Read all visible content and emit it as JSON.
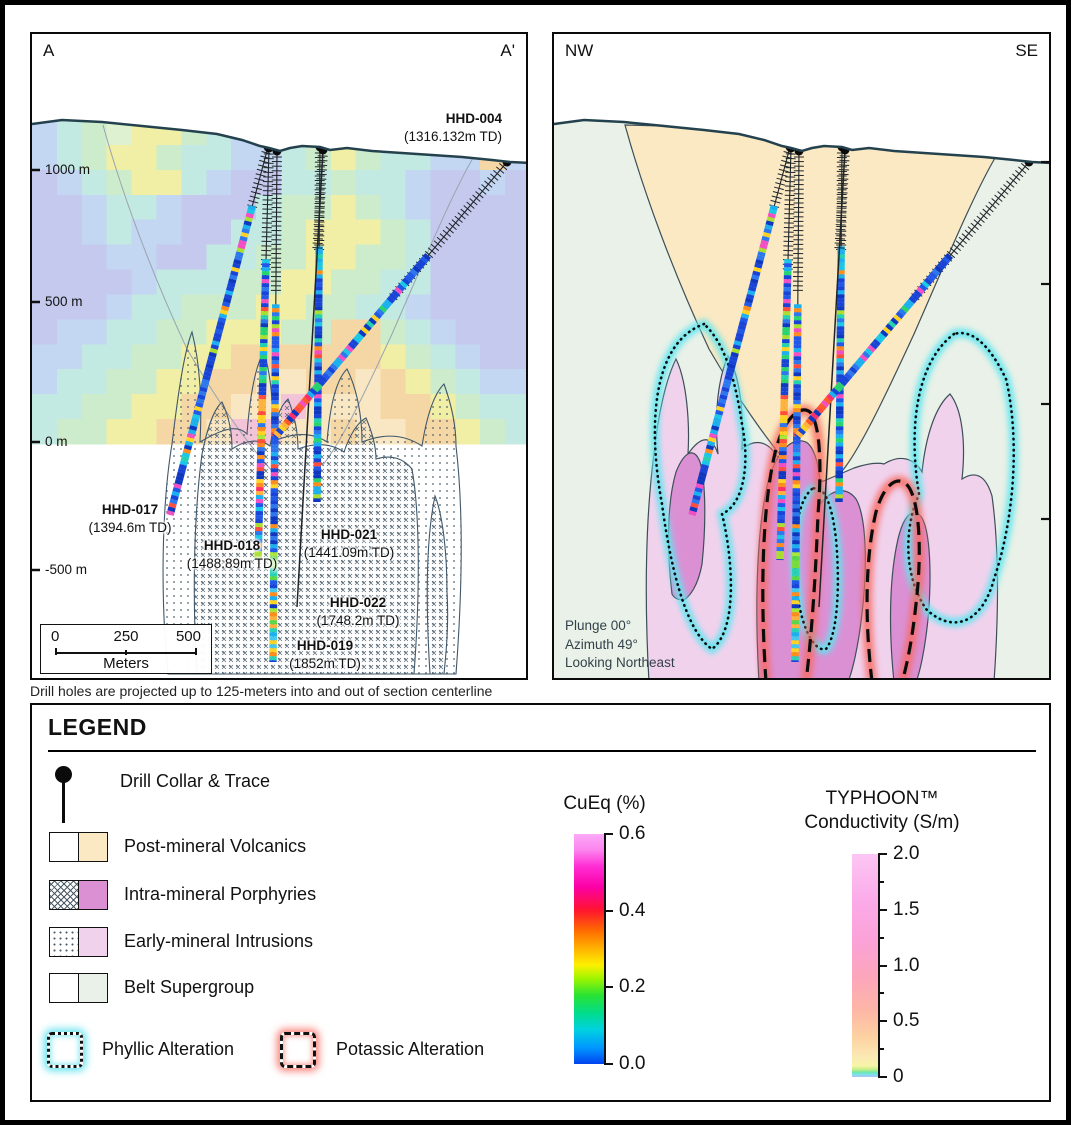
{
  "section_a": {
    "corner_left": "A",
    "corner_right": "A'",
    "depth_labels": [
      "1000 m",
      "500 m",
      "0 m",
      "-500 m"
    ],
    "holes": {
      "hhd004": {
        "name": "HHD-004",
        "td": "(1316.132m TD)"
      },
      "hhd017": {
        "name": "HHD-017",
        "td": "(1394.6m TD)"
      },
      "hhd018": {
        "name": "HHD-018",
        "td": "(1488.89m TD)"
      },
      "hhd021": {
        "name": "HHD-021",
        "td": "(1441.09m TD)"
      },
      "hhd022": {
        "name": "HHD-022",
        "td": "(1748.2m TD)"
      },
      "hhd019": {
        "name": "HHD-019",
        "td": "(1852m TD)"
      }
    },
    "scalebar": {
      "ticks": [
        "0",
        "250",
        "500"
      ],
      "unit": "Meters"
    }
  },
  "section_nw": {
    "corner_left": "NW",
    "corner_right": "SE",
    "view_info": [
      "Plunge 00°",
      "Azimuth 49°",
      "Looking Northeast"
    ]
  },
  "caption": "Drill holes are projected up to 125-meters into and out of section centerline",
  "legend": {
    "title": "LEGEND",
    "drill_collar_label": "Drill Collar & Trace",
    "units": [
      {
        "label": "Post-mineral Volcanics",
        "color": "#FAE9C3",
        "pattern": "none"
      },
      {
        "label": "Intra-mineral Porphyries",
        "color": "#DB90D4",
        "pattern": "xhatch"
      },
      {
        "label": "Early-mineral Intrusions",
        "color": "#F1D2ED",
        "pattern": "dots"
      },
      {
        "label": "Belt Supergroup",
        "color": "#E9F1E8",
        "pattern": "none"
      }
    ],
    "alterations": [
      {
        "label": "Phyllic Alteration",
        "style": "dotted",
        "glow": "#63E2EE"
      },
      {
        "label": "Potassic Alteration",
        "style": "dashed",
        "glow": "#F87C72"
      }
    ],
    "cueq_scale": {
      "title": "CuEq (%)",
      "tick_labels": [
        "0.6",
        "0.4",
        "0.2",
        "0.0"
      ]
    },
    "typhoon_scale": {
      "title_line1": "TYPHOON™",
      "title_line2": "Conductivity (S/m)",
      "tick_labels": [
        "2.0",
        "1.5",
        "1.0",
        "0.5",
        "0"
      ]
    }
  }
}
